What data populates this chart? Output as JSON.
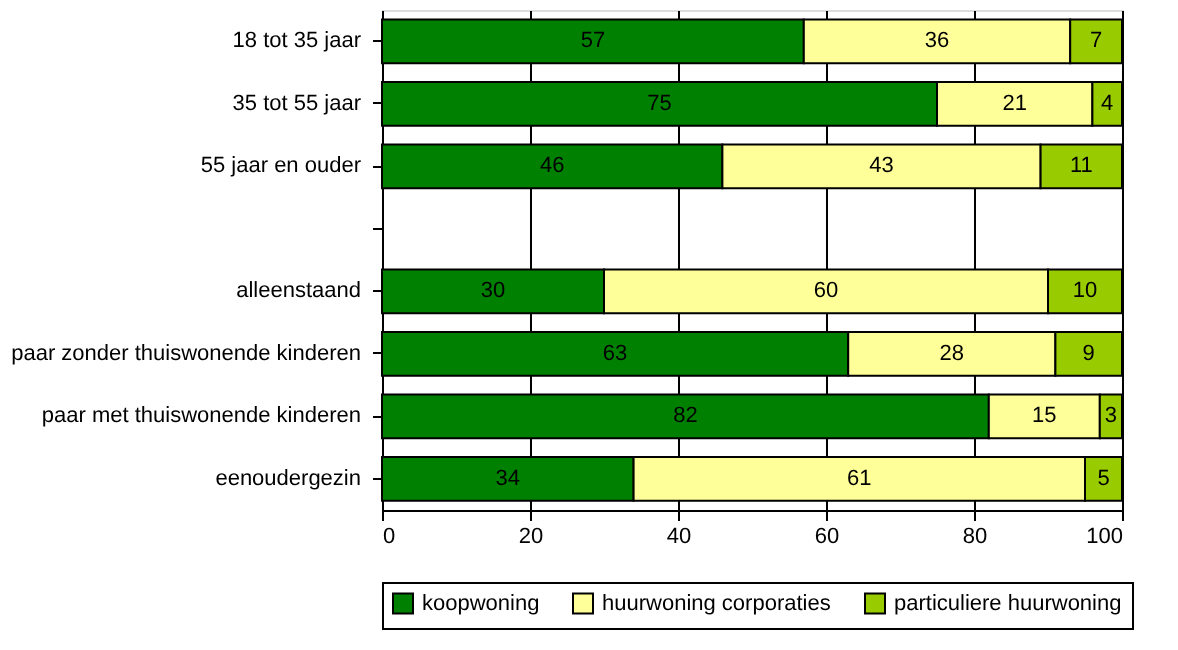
{
  "chart_data": {
    "type": "bar",
    "orientation": "horizontal",
    "stacked": true,
    "categories": [
      "18 tot 35 jaar",
      "35  tot 55 jaar",
      "55 jaar en ouder",
      null,
      "alleenstaand",
      "paar zonder thuiswonende kinderen",
      "paar met thuiswonende kinderen",
      "eenoudergezin"
    ],
    "series": [
      {
        "name": "koopwoning",
        "color": "#008000",
        "values": [
          57,
          75,
          46,
          null,
          30,
          63,
          82,
          34
        ]
      },
      {
        "name": "huurwoning corporaties",
        "color": "#ffff99",
        "values": [
          36,
          21,
          43,
          null,
          60,
          28,
          15,
          61
        ]
      },
      {
        "name": "particuliere huurwoning",
        "color": "#99cc00",
        "values": [
          7,
          4,
          11,
          null,
          10,
          9,
          3,
          5
        ]
      }
    ],
    "xlim": [
      0,
      100
    ],
    "xticks": [
      0,
      20,
      40,
      60,
      80,
      100
    ],
    "grid": "x",
    "legend": "bottom",
    "data_labels": true
  }
}
